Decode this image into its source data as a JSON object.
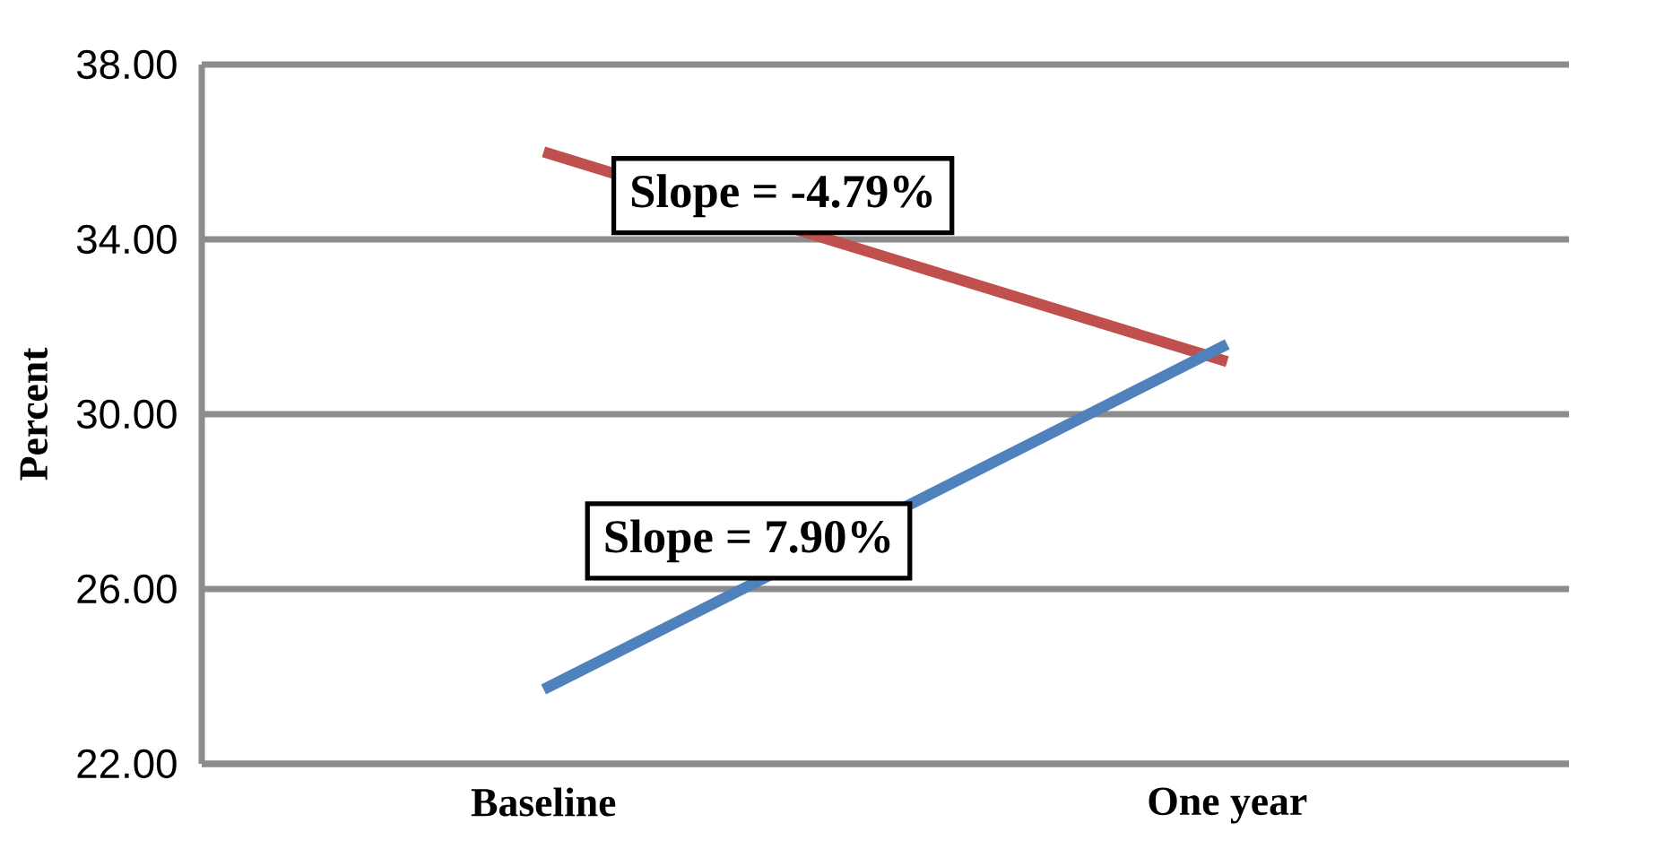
{
  "chart_data": {
    "type": "line",
    "ylabel": "Percent",
    "categories": [
      "Baseline",
      "One year"
    ],
    "series": [
      {
        "color": "#c0504d",
        "values": [
          36.0,
          31.2
        ]
      },
      {
        "color": "#4f81bd",
        "values": [
          23.7,
          31.6
        ]
      }
    ],
    "ylim": [
      22,
      38
    ],
    "yticks": [
      {
        "value": 22,
        "label": "22.00"
      },
      {
        "value": 26,
        "label": "26.00"
      },
      {
        "value": 30,
        "label": "30.00"
      },
      {
        "value": 34,
        "label": "34.00"
      },
      {
        "value": 38,
        "label": "38.00"
      }
    ],
    "grid": "y",
    "marker": "none",
    "line_style": "solid",
    "annotations": [
      "Slope = -4.79%",
      "Slope = 7.90%"
    ]
  }
}
